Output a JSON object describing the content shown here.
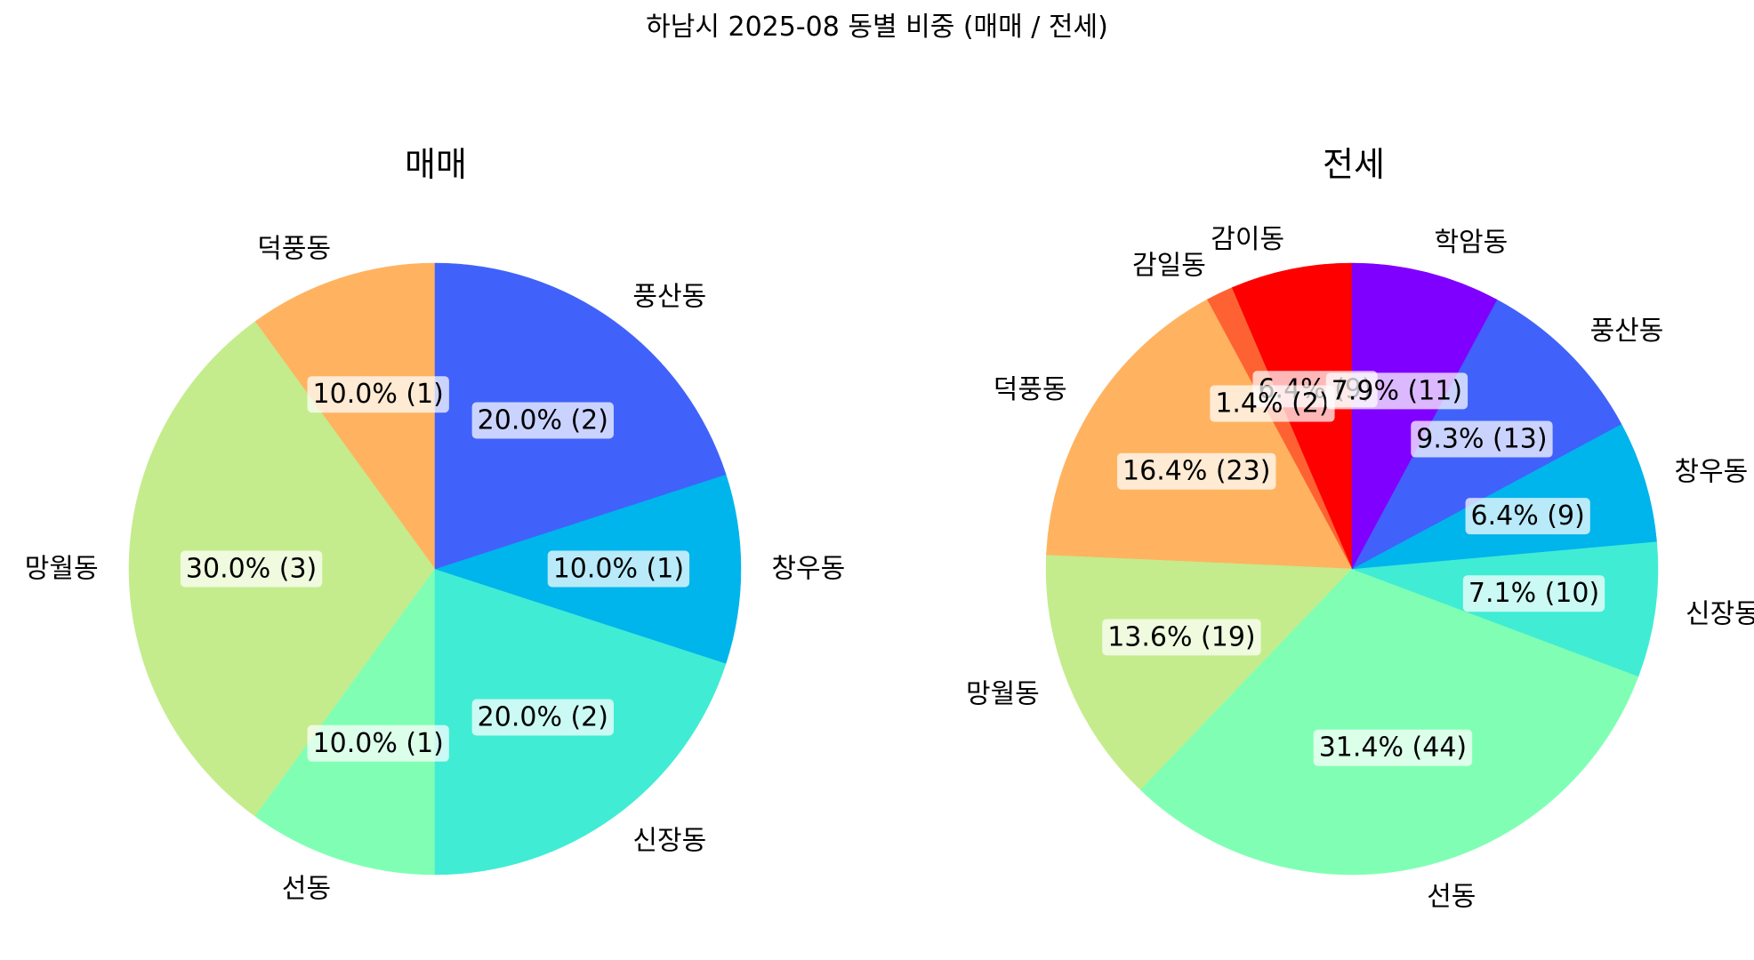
{
  "figure_title": "하남시 2025-08 동별 비중 (매매 / 전세)",
  "chart_data": [
    {
      "type": "pie",
      "title": "매매",
      "slices": [
        {
          "label": "덕풍동",
          "value": 1,
          "pct_label": "10.0% (1)",
          "color": "#ffb360"
        },
        {
          "label": "망월동",
          "value": 3,
          "pct_label": "30.0% (3)",
          "color": "#c4ec8c"
        },
        {
          "label": "선동",
          "value": 1,
          "pct_label": "10.0% (1)",
          "color": "#80ffb4"
        },
        {
          "label": "신장동",
          "value": 2,
          "pct_label": "20.0% (2)",
          "color": "#40ecd4"
        },
        {
          "label": "창우동",
          "value": 1,
          "pct_label": "10.0% (1)",
          "color": "#00b4ec"
        },
        {
          "label": "풍산동",
          "value": 2,
          "pct_label": "20.0% (2)",
          "color": "#4062fa"
        }
      ]
    },
    {
      "type": "pie",
      "title": "전세",
      "slices": [
        {
          "label": "감이동",
          "value": 9,
          "pct_label": "6.4% (9)",
          "color": "#ff0000"
        },
        {
          "label": "감일동",
          "value": 2,
          "pct_label": "1.4% (2)",
          "color": "#ff6232"
        },
        {
          "label": "덕풍동",
          "value": 23,
          "pct_label": "16.4% (23)",
          "color": "#ffb360"
        },
        {
          "label": "망월동",
          "value": 19,
          "pct_label": "13.6% (19)",
          "color": "#c4ec8c"
        },
        {
          "label": "선동",
          "value": 44,
          "pct_label": "31.4% (44)",
          "color": "#80ffb4"
        },
        {
          "label": "신장동",
          "value": 10,
          "pct_label": "7.1% (10)",
          "color": "#40ecd4"
        },
        {
          "label": "창우동",
          "value": 9,
          "pct_label": "6.4% (9)",
          "color": "#00b4ec"
        },
        {
          "label": "풍산동",
          "value": 13,
          "pct_label": "9.3% (13)",
          "color": "#4062fa"
        },
        {
          "label": "학암동",
          "value": 11,
          "pct_label": "7.9% (11)",
          "color": "#8000ff"
        }
      ]
    }
  ]
}
